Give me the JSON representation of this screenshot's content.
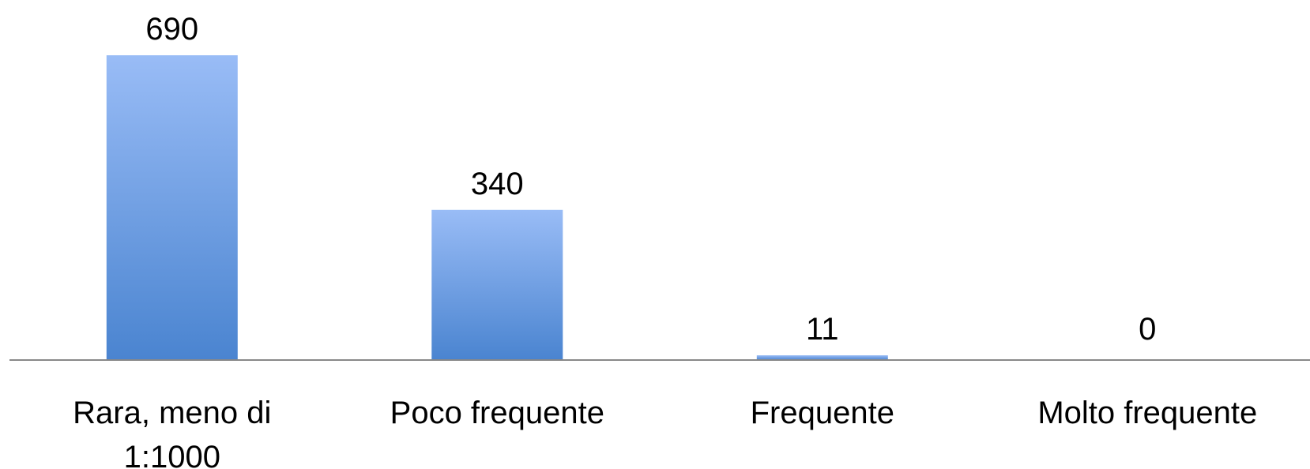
{
  "chart_data": {
    "type": "bar",
    "categories": [
      [
        "Rara, meno di",
        "1:1000"
      ],
      [
        "Poco frequente"
      ],
      [
        "Frequente"
      ],
      [
        "Molto frequente"
      ]
    ],
    "values": [
      690,
      340,
      11,
      0
    ],
    "data_labels": [
      "690",
      "340",
      "11",
      "0"
    ],
    "title": "",
    "xlabel": "",
    "ylabel": "",
    "ylim": [
      0,
      690
    ],
    "grid": false,
    "legend": "none",
    "colors": {
      "bar_top": "#99BCF6",
      "bar_bottom": "#4A84D0",
      "axis": "#888888"
    }
  }
}
